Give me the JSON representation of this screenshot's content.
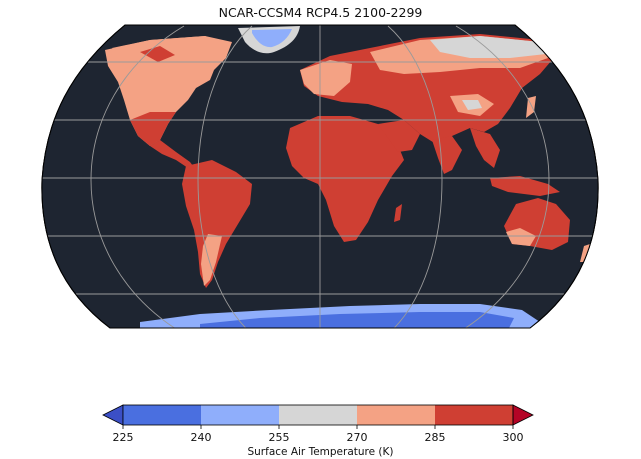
{
  "title": "NCAR-CCSM4 RCP4.5 2100-2299",
  "colorbar": {
    "label": "Surface Air Temperature (K)",
    "ticks": [
      "225",
      "240",
      "255",
      "270",
      "285",
      "300"
    ],
    "bins": [
      {
        "from": 225,
        "to": 240,
        "color": "#4a6fe0"
      },
      {
        "from": 240,
        "to": 255,
        "color": "#8faefb"
      },
      {
        "from": 255,
        "to": 270,
        "color": "#d6d6d6"
      },
      {
        "from": 270,
        "to": 285,
        "color": "#f4a284"
      },
      {
        "from": 285,
        "to": 300,
        "color": "#cf3f33"
      }
    ],
    "under_color": "#3b4fc6",
    "over_color": "#b40426"
  },
  "colors": {
    "ocean": "#1e2531",
    "graticule": "#9a9a9a",
    "coast": "#000000"
  }
}
